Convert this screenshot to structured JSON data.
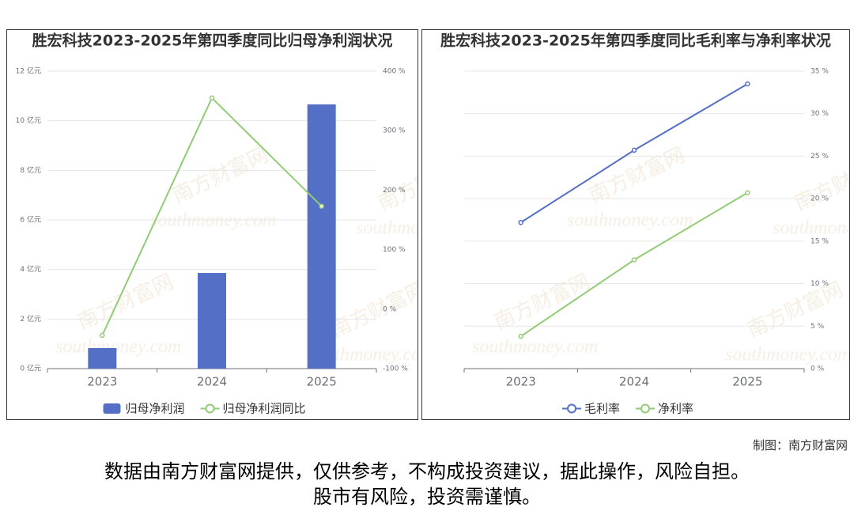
{
  "chart_data": [
    {
      "type": "bar",
      "title": "胜宏科技2023-2025年第四季度同比归母净利润状况",
      "categories": [
        "2023",
        "2024",
        "2025"
      ],
      "series": [
        {
          "name": "归母净利润",
          "color": "#5470c6",
          "values": [
            0.83,
            3.86,
            10.66
          ]
        },
        {
          "name": "归母净利润同比",
          "type": "line",
          "axis": "y2",
          "color": "#91cc75",
          "values": [
            -44,
            355,
            173
          ]
        }
      ],
      "ylim": [
        0,
        12
      ],
      "yticks": [
        {
          "value": 0,
          "label": "0 亿元"
        },
        {
          "value": 2,
          "label": "2 亿元"
        },
        {
          "value": 4,
          "label": "4 亿元"
        },
        {
          "value": 6,
          "label": "6 亿元"
        },
        {
          "value": 8,
          "label": "8 亿元"
        },
        {
          "value": 10,
          "label": "10 亿元"
        },
        {
          "value": 12,
          "label": "12 亿元"
        }
      ],
      "y2lim": [
        -100,
        400
      ],
      "y2ticks": [
        {
          "value": -100,
          "label": "-100 %"
        },
        {
          "value": 0,
          "label": "0 %"
        },
        {
          "value": 100,
          "label": "100 %"
        },
        {
          "value": 200,
          "label": "200 %"
        },
        {
          "value": 300,
          "label": "300 %"
        },
        {
          "value": 400,
          "label": "400 %"
        }
      ],
      "grid": true
    },
    {
      "type": "line",
      "title": "胜宏科技2023-2025年第四季度同比毛利率与净利率状况",
      "categories": [
        "2023",
        "2024",
        "2025"
      ],
      "series": [
        {
          "name": "毛利率",
          "color": "#5470c6",
          "values": [
            17.2,
            25.7,
            33.5
          ]
        },
        {
          "name": "净利率",
          "color": "#91cc75",
          "values": [
            3.8,
            12.8,
            20.7
          ]
        }
      ],
      "ylim": [
        0,
        35
      ],
      "y_axis_position": "right",
      "yticks": [
        {
          "value": 0,
          "label": "0 %"
        },
        {
          "value": 5,
          "label": "5 %"
        },
        {
          "value": 10,
          "label": "10 %"
        },
        {
          "value": 15,
          "label": "15 %"
        },
        {
          "value": 20,
          "label": "20 %"
        },
        {
          "value": 25,
          "label": "25 %"
        },
        {
          "value": 30,
          "label": "30 %"
        },
        {
          "value": 35,
          "label": "35 %"
        }
      ],
      "grid": true
    }
  ],
  "watermark": [
    "南方财富网",
    "southmoney.com"
  ],
  "footer": {
    "credit": "制图：南方财富网",
    "disclaimer": [
      "数据由南方财富网提供，仅供参考，不构成投资建议，据此操作，风险自担。",
      "股市有风险，投资需谨慎。"
    ]
  }
}
